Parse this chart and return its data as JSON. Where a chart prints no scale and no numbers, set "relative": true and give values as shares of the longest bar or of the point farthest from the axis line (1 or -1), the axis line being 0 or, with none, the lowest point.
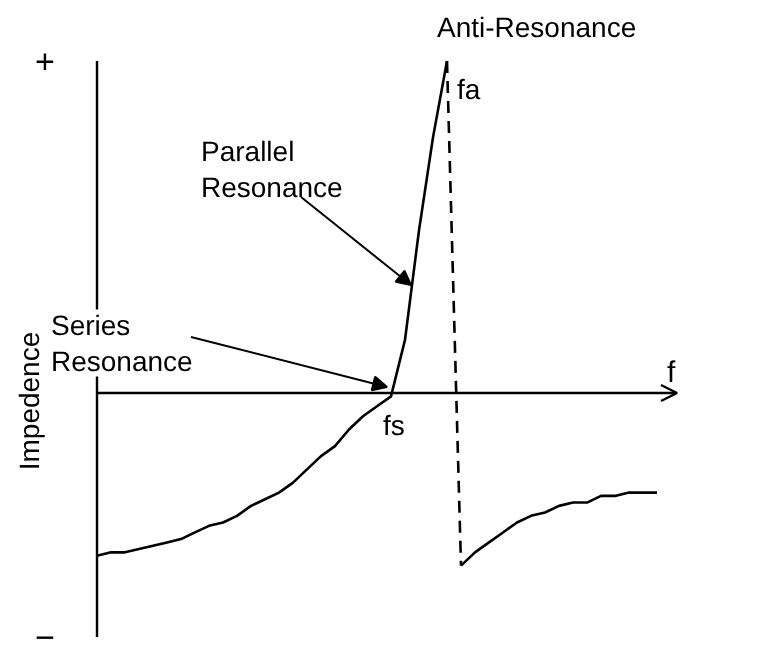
{
  "chart_data": {
    "type": "line",
    "relative": true,
    "ylabel": "Impedence",
    "xlabel": "f",
    "categories": [
      null,
      null,
      null,
      null,
      null,
      null,
      null,
      null,
      null,
      null,
      null,
      null,
      null,
      null,
      null,
      null,
      null,
      null,
      null,
      null,
      null,
      null,
      null,
      null,
      null,
      null,
      null,
      null,
      null,
      null,
      null,
      null,
      null,
      null,
      null,
      null,
      null,
      null,
      null,
      null,
      null
    ],
    "series": [
      {
        "color": "#000000",
        "values": [
          -0.49,
          -0.48,
          -0.48,
          -0.47,
          -0.46,
          -0.45,
          -0.44,
          -0.42,
          -0.4,
          -0.39,
          -0.37,
          -0.34,
          -0.32,
          -0.3,
          -0.27,
          -0.23,
          -0.19,
          -0.16,
          -0.11,
          -0.07,
          -0.04,
          -0.01,
          0.16,
          0.49,
          0.77,
          1.0,
          null,
          null,
          null,
          null,
          null,
          null,
          null,
          null,
          null,
          null,
          null,
          null,
          null,
          null,
          null
        ]
      },
      {
        "color": "#000000",
        "line_style": "dashed",
        "values": [
          null,
          null,
          null,
          null,
          null,
          null,
          null,
          null,
          null,
          null,
          null,
          null,
          null,
          null,
          null,
          null,
          null,
          null,
          null,
          null,
          null,
          null,
          null,
          null,
          null,
          1.0,
          -0.52,
          null,
          null,
          null,
          null,
          null,
          null,
          null,
          null,
          null,
          null,
          null,
          null,
          null,
          null
        ]
      },
      {
        "color": "#000000",
        "values": [
          null,
          null,
          null,
          null,
          null,
          null,
          null,
          null,
          null,
          null,
          null,
          null,
          null,
          null,
          null,
          null,
          null,
          null,
          null,
          null,
          null,
          null,
          null,
          null,
          null,
          null,
          -0.52,
          -0.48,
          -0.45,
          -0.42,
          -0.39,
          -0.37,
          -0.36,
          -0.34,
          -0.33,
          -0.33,
          -0.31,
          -0.31,
          -0.3,
          -0.3,
          -0.3
        ]
      }
    ],
    "annotations": [
      "+",
      "−",
      "Anti-Resonance",
      "fa",
      "Parallel\nResonance",
      "Series\nResonance",
      "fs"
    ],
    "line_style": "solid",
    "grid": false
  }
}
